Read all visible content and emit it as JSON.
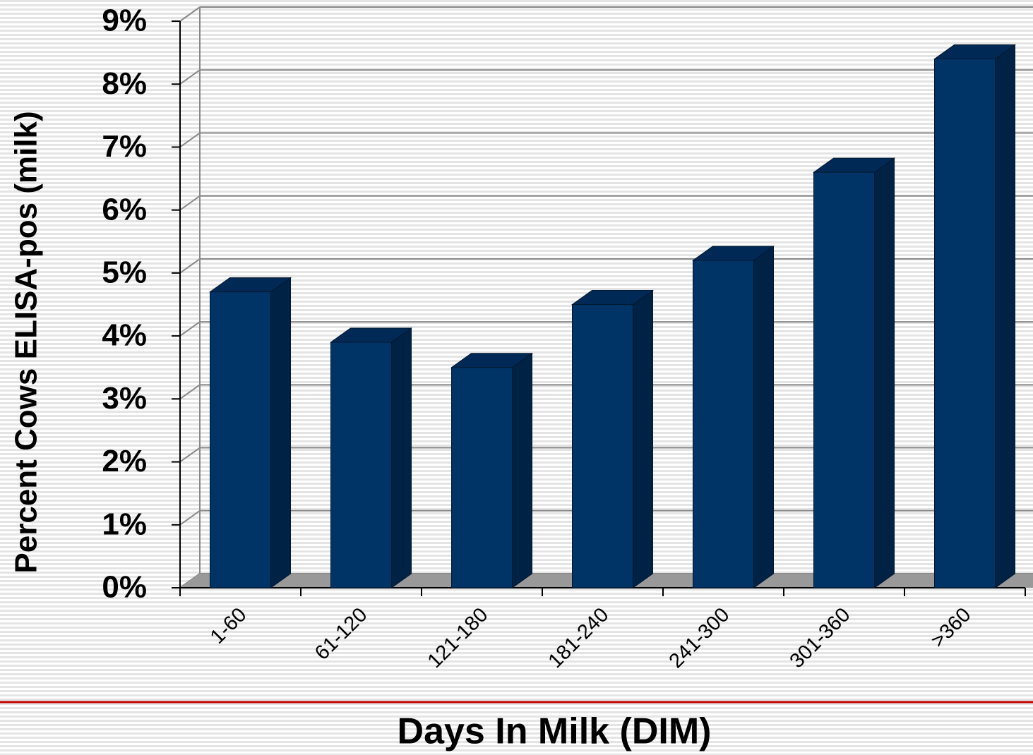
{
  "chart_data": {
    "type": "bar3d",
    "categories": [
      "1-60",
      "61-120",
      "121-180",
      "181-240",
      "241-300",
      "301-360",
      ">360"
    ],
    "values": [
      4.7,
      3.9,
      3.5,
      4.5,
      5.2,
      6.6,
      8.4
    ],
    "color": "#003366",
    "y_label": "Percent Cows ELISA-pos (milk)",
    "x_label": "Days In Milk (DIM)",
    "ylim": [
      0,
      9
    ],
    "yticks": [
      {
        "value": 0,
        "label": "0%"
      },
      {
        "value": 1,
        "label": "1%"
      },
      {
        "value": 2,
        "label": "2%"
      },
      {
        "value": 3,
        "label": "3%"
      },
      {
        "value": 4,
        "label": "4%"
      },
      {
        "value": 5,
        "label": "5%"
      },
      {
        "value": 6,
        "label": "6%"
      },
      {
        "value": 7,
        "label": "7%"
      },
      {
        "value": 8,
        "label": "8%"
      },
      {
        "value": 9,
        "label": "9%"
      }
    ],
    "grid": true
  }
}
